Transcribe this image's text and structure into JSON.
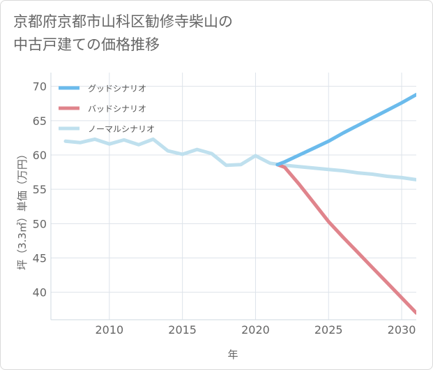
{
  "title_lines": [
    "京都府京都市山科区勧修寺柴山の",
    "中古戸建ての価格推移"
  ],
  "chart_data": {
    "type": "line",
    "xlabel": "年",
    "ylabel": "坪（3.3㎡）単価（万円）",
    "xlim": [
      2006,
      2031
    ],
    "ylim": [
      36,
      72
    ],
    "xticks": [
      2010,
      2015,
      2020,
      2025,
      2030
    ],
    "yticks": [
      40,
      45,
      50,
      55,
      60,
      65,
      70
    ],
    "grid": true,
    "legend_position": "top-left",
    "series": [
      {
        "name": "グッドシナリオ",
        "color": "#6bbbec",
        "points": [
          [
            2021.5,
            58.6
          ],
          [
            2022,
            59.0
          ],
          [
            2023,
            60.0
          ],
          [
            2024,
            61.0
          ],
          [
            2025,
            62.0
          ],
          [
            2026,
            63.2
          ],
          [
            2027,
            64.3
          ],
          [
            2028,
            65.4
          ],
          [
            2029,
            66.5
          ],
          [
            2030,
            67.6
          ],
          [
            2031,
            68.8
          ]
        ]
      },
      {
        "name": "バッドシナリオ",
        "color": "#e0848c",
        "points": [
          [
            2021.5,
            58.6
          ],
          [
            2022,
            58.2
          ],
          [
            2023,
            55.7
          ],
          [
            2024,
            53.0
          ],
          [
            2025,
            50.3
          ],
          [
            2026,
            48.0
          ],
          [
            2027,
            45.8
          ],
          [
            2028,
            43.6
          ],
          [
            2029,
            41.4
          ],
          [
            2030,
            39.2
          ],
          [
            2031,
            37.0
          ]
        ]
      },
      {
        "name": "ノーマルシナリオ",
        "color": "#bfe0ee",
        "points": [
          [
            2007,
            62.0
          ],
          [
            2008,
            61.8
          ],
          [
            2009,
            62.3
          ],
          [
            2010,
            61.6
          ],
          [
            2011,
            62.2
          ],
          [
            2012,
            61.5
          ],
          [
            2013,
            62.3
          ],
          [
            2014,
            60.6
          ],
          [
            2015,
            60.1
          ],
          [
            2016,
            60.8
          ],
          [
            2017,
            60.2
          ],
          [
            2018,
            58.5
          ],
          [
            2019,
            58.6
          ],
          [
            2020,
            59.9
          ],
          [
            2021,
            58.8
          ],
          [
            2022,
            58.5
          ],
          [
            2023,
            58.3
          ],
          [
            2024,
            58.1
          ],
          [
            2025,
            57.9
          ],
          [
            2026,
            57.7
          ],
          [
            2027,
            57.4
          ],
          [
            2028,
            57.2
          ],
          [
            2029,
            56.9
          ],
          [
            2030,
            56.7
          ],
          [
            2031,
            56.4
          ]
        ]
      }
    ]
  }
}
